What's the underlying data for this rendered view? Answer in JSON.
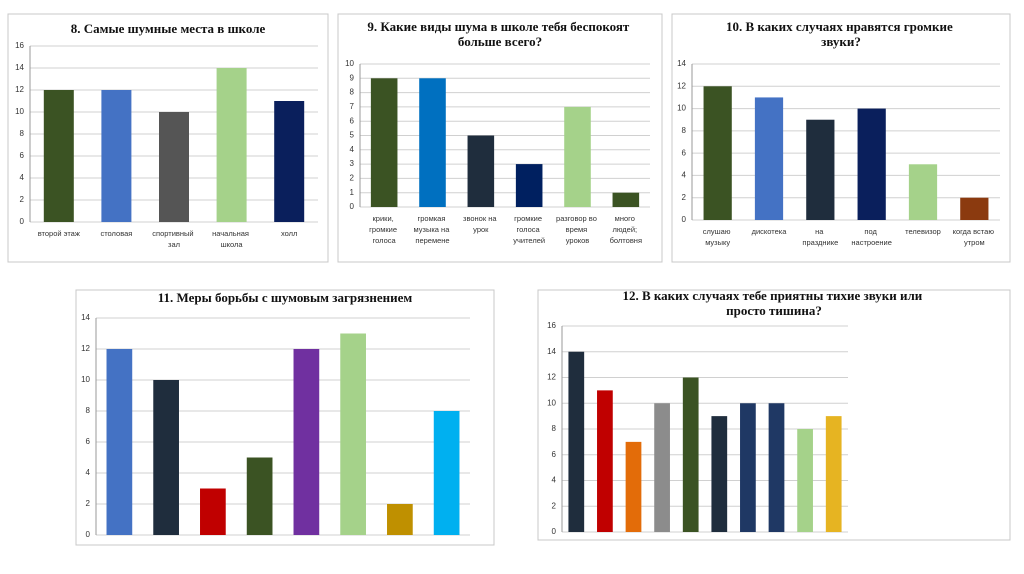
{
  "chart_data": [
    {
      "type": "bar",
      "title": "8. Самые шумные места в школе",
      "categories": [
        "второй этаж",
        "столовая",
        "спортивный зал",
        "начальная школа",
        "холл"
      ],
      "values": [
        12,
        12,
        10,
        14,
        11
      ],
      "colors": [
        "#3b5323",
        "#4472c4",
        "#555555",
        "#a5d28a",
        "#0a1f5c"
      ],
      "ylim": [
        0,
        16
      ],
      "yticks": [
        0,
        2,
        4,
        6,
        8,
        10,
        12,
        14,
        16
      ],
      "grid": true
    },
    {
      "type": "bar",
      "title": "9. Какие виды шума в школе тебя беспокоят больше всего?",
      "categories": [
        "крики, громкие голоса",
        "громкая музыка на перемене",
        "звонок на урок",
        "громкие голоса учителей",
        "разговор во время уроков",
        "много людей; болтовня"
      ],
      "values": [
        9,
        9,
        5,
        3,
        7,
        1
      ],
      "colors": [
        "#3b5323",
        "#0070c0",
        "#1f2d3d",
        "#002060",
        "#a5d28a",
        "#3b5323"
      ],
      "ylim": [
        0,
        10
      ],
      "yticks": [
        0,
        1,
        2,
        3,
        4,
        5,
        6,
        7,
        8,
        9,
        10
      ],
      "grid": true
    },
    {
      "type": "bar",
      "title": "10. В каких случаях нравятся громкие звуки?",
      "categories": [
        "слушаю музыку",
        "дискотека",
        "на празднике",
        "под настроение",
        "телевизор",
        "когда встаю утром"
      ],
      "values": [
        12,
        11,
        9,
        10,
        5,
        2
      ],
      "colors": [
        "#3b5323",
        "#4472c4",
        "#1f2d3d",
        "#0a1f5c",
        "#a5d28a",
        "#8b3a0f"
      ],
      "ylim": [
        0,
        14
      ],
      "yticks": [
        0,
        2,
        4,
        6,
        8,
        10,
        12,
        14
      ],
      "grid": true
    },
    {
      "type": "bar",
      "title": "11. Меры борьбы с шумовым загрязнением",
      "values": [
        12,
        10,
        3,
        5,
        12,
        13,
        2,
        8
      ],
      "colors": [
        "#4472c4",
        "#1f2d3d",
        "#c00000",
        "#3b5323",
        "#7030a0",
        "#a5d28a",
        "#bf9000",
        "#00b0f0"
      ],
      "ylim": [
        0,
        14
      ],
      "yticks": [
        0,
        2,
        4,
        6,
        8,
        10,
        12,
        14
      ],
      "grid": true
    },
    {
      "type": "bar",
      "title": "12. В каких случаях тебе приятны тихие звуки или просто тишина?",
      "values": [
        14,
        11,
        7,
        10,
        12,
        9,
        10,
        10,
        8,
        9
      ],
      "colors": [
        "#1f2d3d",
        "#c00000",
        "#e36c09",
        "#8c8c8c",
        "#3b5323",
        "#1f2d3d",
        "#1f3864",
        "#1f3864",
        "#a5d28a",
        "#e6b422"
      ],
      "ylim": [
        0,
        16
      ],
      "yticks": [
        0,
        2,
        4,
        6,
        8,
        10,
        12,
        14,
        16
      ],
      "grid": true
    }
  ]
}
